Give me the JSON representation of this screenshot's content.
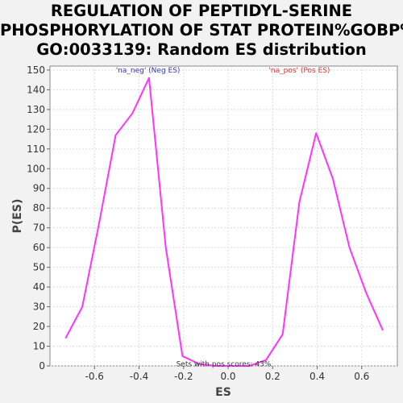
{
  "chart_data": {
    "type": "line",
    "title_lines": [
      "REGULATION OF PEPTIDYL-SERINE",
      "PHOSPHORYLATION OF STAT PROTEIN%GOBP%",
      "GO:0033139: Random ES distribution"
    ],
    "xlabel": "ES",
    "ylabel": "P(ES)",
    "xlim": [
      -0.8,
      0.76
    ],
    "ylim": [
      0,
      152
    ],
    "xticks": [
      -0.6,
      -0.4,
      -0.2,
      0.0,
      0.2,
      0.4,
      0.6
    ],
    "xtick_labels": [
      "-0.6",
      "-0.4",
      "-0.2",
      "0.0",
      "0.2",
      "0.4",
      "0.6"
    ],
    "yticks": [
      0,
      10,
      20,
      30,
      40,
      50,
      60,
      70,
      80,
      90,
      100,
      110,
      120,
      130,
      140,
      150
    ],
    "ytick_labels": [
      "0",
      "10",
      "20",
      "30",
      "40",
      "50",
      "60",
      "70",
      "80",
      "90",
      "100",
      "110",
      "120",
      "130",
      "140",
      "150"
    ],
    "grid": true,
    "series": [
      {
        "color": "#ff33ff",
        "x": [
          -0.73,
          -0.655,
          -0.58,
          -0.505,
          -0.43,
          -0.355,
          -0.28,
          -0.205,
          -0.13,
          -0.055,
          0.02,
          0.095,
          0.17,
          0.245,
          0.32,
          0.395,
          0.47,
          0.545,
          0.62,
          0.695
        ],
        "y": [
          14,
          30,
          72,
          117,
          128,
          146,
          60,
          5,
          1,
          0,
          0,
          0,
          3,
          16,
          83,
          118,
          95,
          60,
          37,
          18
        ]
      }
    ],
    "annotations": [
      {
        "text": "'na_neg' (Neg ES)",
        "color": "#3333cc",
        "x": -0.36,
        "y": 150
      },
      {
        "text": "'na_pos' (Pos ES)",
        "color": "#dd3333",
        "x": 0.32,
        "y": 150
      },
      {
        "text": "Sets with pos scores: 43%",
        "color": "#333333",
        "x": -0.02,
        "y": 1
      }
    ]
  }
}
